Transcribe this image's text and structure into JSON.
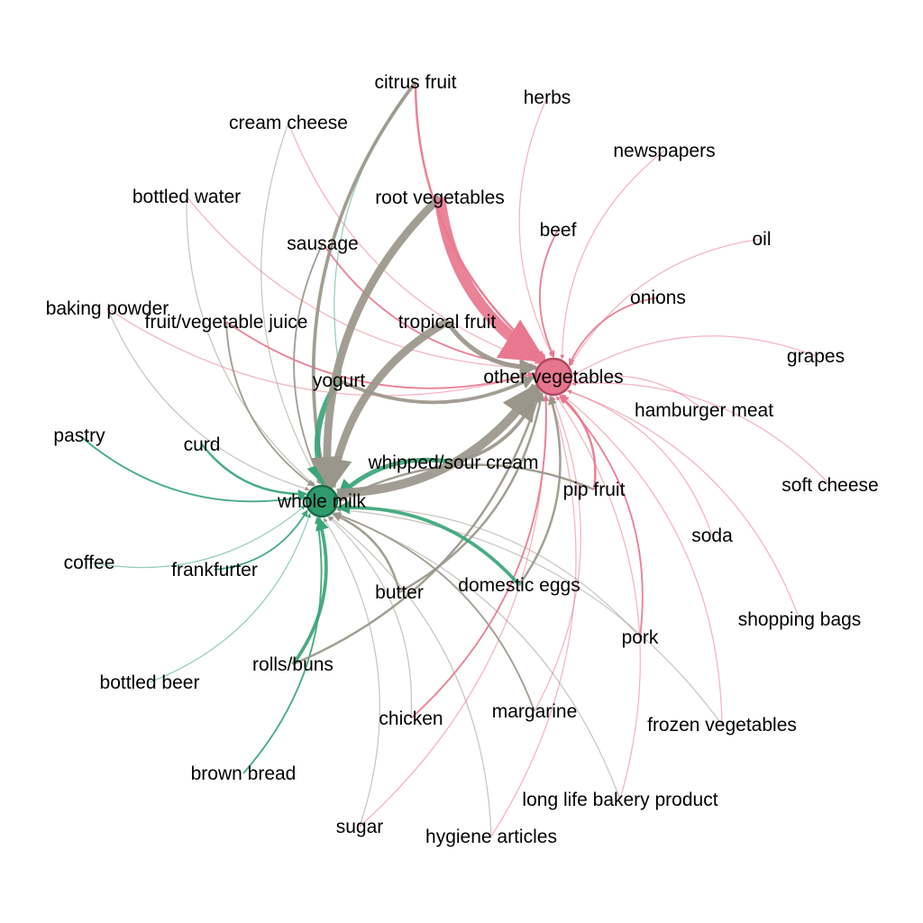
{
  "colors": {
    "whole_milk": "#3aa57a",
    "other_vegetables": "#e8778f",
    "shared": "#9a968a",
    "hub_milk_fill": "#2f9a6c",
    "hub_milk_stroke": "#1d6b49",
    "hub_veg_fill": "#e4778e",
    "hub_veg_stroke": "#b4485f",
    "background": "#ffffff"
  },
  "hubs": [
    {
      "id": "whole_milk",
      "label": "whole milk"
    },
    {
      "id": "other_vegetables",
      "label": "other vegetables"
    }
  ],
  "nodes": [
    {
      "id": "citrus_fruit",
      "label": "citrus fruit"
    },
    {
      "id": "herbs",
      "label": "herbs"
    },
    {
      "id": "cream_cheese",
      "label": "cream cheese"
    },
    {
      "id": "newspapers",
      "label": "newspapers"
    },
    {
      "id": "bottled_water",
      "label": "bottled water"
    },
    {
      "id": "root_vegetables",
      "label": "root vegetables"
    },
    {
      "id": "beef",
      "label": "beef"
    },
    {
      "id": "oil",
      "label": "oil"
    },
    {
      "id": "sausage",
      "label": "sausage"
    },
    {
      "id": "onions",
      "label": "onions"
    },
    {
      "id": "baking_powder",
      "label": "baking powder"
    },
    {
      "id": "fruit_vegetable_juice",
      "label": "fruit/vegetable juice"
    },
    {
      "id": "tropical_fruit",
      "label": "tropical fruit"
    },
    {
      "id": "grapes",
      "label": "grapes"
    },
    {
      "id": "yogurt",
      "label": "yogurt"
    },
    {
      "id": "hamburger_meat",
      "label": "hamburger meat"
    },
    {
      "id": "pastry",
      "label": "pastry"
    },
    {
      "id": "curd",
      "label": "curd"
    },
    {
      "id": "whipped_sour_cream",
      "label": "whipped/sour cream"
    },
    {
      "id": "soft_cheese",
      "label": "soft cheese"
    },
    {
      "id": "pip_fruit",
      "label": "pip fruit"
    },
    {
      "id": "soda",
      "label": "soda"
    },
    {
      "id": "coffee",
      "label": "coffee"
    },
    {
      "id": "frankfurter",
      "label": "frankfurter"
    },
    {
      "id": "domestic_eggs",
      "label": "domestic eggs"
    },
    {
      "id": "butter",
      "label": "butter"
    },
    {
      "id": "shopping_bags",
      "label": "shopping bags"
    },
    {
      "id": "pork",
      "label": "pork"
    },
    {
      "id": "bottled_beer",
      "label": "bottled beer"
    },
    {
      "id": "rolls_buns",
      "label": "rolls/buns"
    },
    {
      "id": "margarine",
      "label": "margarine"
    },
    {
      "id": "chicken",
      "label": "chicken"
    },
    {
      "id": "frozen_vegetables",
      "label": "frozen vegetables"
    },
    {
      "id": "brown_bread",
      "label": "brown bread"
    },
    {
      "id": "long_life_bakery_product",
      "label": "long life bakery product"
    },
    {
      "id": "sugar",
      "label": "sugar"
    },
    {
      "id": "hygiene_articles",
      "label": "hygiene articles"
    }
  ],
  "edges": [
    {
      "from": "root_vegetables",
      "to": "other_vegetables",
      "weight": 10,
      "color": "other_vegetables"
    },
    {
      "from": "root_vegetables",
      "to": "whole_milk",
      "weight": 7,
      "color": "shared"
    },
    {
      "from": "tropical_fruit",
      "to": "whole_milk",
      "weight": 7,
      "color": "shared"
    },
    {
      "from": "yogurt",
      "to": "whole_milk",
      "weight": 5,
      "color": "whole_milk"
    },
    {
      "from": "whole_milk",
      "to": "other_vegetables",
      "weight": 8,
      "color": "shared"
    },
    {
      "from": "whipped_sour_cream",
      "to": "whole_milk",
      "weight": 4,
      "color": "whole_milk"
    },
    {
      "from": "whipped_sour_cream",
      "to": "other_vegetables",
      "weight": 3,
      "color": "shared"
    },
    {
      "from": "citrus_fruit",
      "to": "whole_milk",
      "weight": 3,
      "color": "shared"
    },
    {
      "from": "citrus_fruit",
      "to": "other_vegetables",
      "weight": 2,
      "color": "other_vegetables"
    },
    {
      "from": "tropical_fruit",
      "to": "other_vegetables",
      "weight": 4,
      "color": "shared"
    },
    {
      "from": "domestic_eggs",
      "to": "whole_milk",
      "weight": 3,
      "color": "whole_milk"
    },
    {
      "from": "domestic_eggs",
      "to": "other_vegetables",
      "weight": 2,
      "color": "shared"
    },
    {
      "from": "pip_fruit",
      "to": "whole_milk",
      "weight": 2,
      "color": "shared"
    },
    {
      "from": "pip_fruit",
      "to": "other_vegetables",
      "weight": 2,
      "color": "other_vegetables"
    },
    {
      "from": "butter",
      "to": "whole_milk",
      "weight": 2,
      "color": "shared"
    },
    {
      "from": "butter",
      "to": "other_vegetables",
      "weight": 2,
      "color": "shared"
    },
    {
      "from": "rolls_buns",
      "to": "whole_milk",
      "weight": 3,
      "color": "whole_milk"
    },
    {
      "from": "rolls_buns",
      "to": "other_vegetables",
      "weight": 2,
      "color": "shared"
    },
    {
      "from": "curd",
      "to": "whole_milk",
      "weight": 2,
      "color": "whole_milk"
    },
    {
      "from": "pastry",
      "to": "whole_milk",
      "weight": 1.5,
      "color": "whole_milk"
    },
    {
      "from": "coffee",
      "to": "whole_milk",
      "weight": 1,
      "color": "whole_milk"
    },
    {
      "from": "frankfurter",
      "to": "whole_milk",
      "weight": 1.5,
      "color": "whole_milk"
    },
    {
      "from": "bottled_beer",
      "to": "whole_milk",
      "weight": 1,
      "color": "whole_milk"
    },
    {
      "from": "brown_bread",
      "to": "whole_milk",
      "weight": 1.5,
      "color": "whole_milk"
    },
    {
      "from": "sugar",
      "to": "whole_milk",
      "weight": 1,
      "color": "shared"
    },
    {
      "from": "hygiene_articles",
      "to": "whole_milk",
      "weight": 1,
      "color": "shared"
    },
    {
      "from": "margarine",
      "to": "whole_milk",
      "weight": 1.5,
      "color": "shared"
    },
    {
      "from": "frozen_vegetables",
      "to": "whole_milk",
      "weight": 1,
      "color": "shared"
    },
    {
      "from": "pork",
      "to": "whole_milk",
      "weight": 1,
      "color": "shared"
    },
    {
      "from": "chicken",
      "to": "whole_milk",
      "weight": 1,
      "color": "shared"
    },
    {
      "from": "long_life_bakery_product",
      "to": "whole_milk",
      "weight": 1,
      "color": "shared"
    },
    {
      "from": "sausage",
      "to": "whole_milk",
      "weight": 1.5,
      "color": "shared"
    },
    {
      "from": "cream_cheese",
      "to": "whole_milk",
      "weight": 1,
      "color": "shared"
    },
    {
      "from": "bottled_water",
      "to": "whole_milk",
      "weight": 1,
      "color": "shared"
    },
    {
      "from": "fruit_vegetable_juice",
      "to": "whole_milk",
      "weight": 1.5,
      "color": "shared"
    },
    {
      "from": "baking_powder",
      "to": "whole_milk",
      "weight": 1,
      "color": "shared"
    },
    {
      "from": "herbs",
      "to": "other_vegetables",
      "weight": 1,
      "color": "other_vegetables"
    },
    {
      "from": "cream_cheese",
      "to": "other_vegetables",
      "weight": 1,
      "color": "other_vegetables"
    },
    {
      "from": "newspapers",
      "to": "other_vegetables",
      "weight": 1,
      "color": "other_vegetables"
    },
    {
      "from": "bottled_water",
      "to": "other_vegetables",
      "weight": 1,
      "color": "other_vegetables"
    },
    {
      "from": "beef",
      "to": "other_vegetables",
      "weight": 1.5,
      "color": "other_vegetables"
    },
    {
      "from": "oil",
      "to": "other_vegetables",
      "weight": 1,
      "color": "other_vegetables"
    },
    {
      "from": "sausage",
      "to": "other_vegetables",
      "weight": 1.5,
      "color": "other_vegetables"
    },
    {
      "from": "onions",
      "to": "other_vegetables",
      "weight": 1.5,
      "color": "other_vegetables"
    },
    {
      "from": "baking_powder",
      "to": "other_vegetables",
      "weight": 1,
      "color": "other_vegetables"
    },
    {
      "from": "fruit_vegetable_juice",
      "to": "other_vegetables",
      "weight": 1.5,
      "color": "other_vegetables"
    },
    {
      "from": "grapes",
      "to": "other_vegetables",
      "weight": 1,
      "color": "other_vegetables"
    },
    {
      "from": "hamburger_meat",
      "to": "other_vegetables",
      "weight": 1,
      "color": "other_vegetables"
    },
    {
      "from": "soft_cheese",
      "to": "other_vegetables",
      "weight": 1,
      "color": "other_vegetables"
    },
    {
      "from": "soda",
      "to": "other_vegetables",
      "weight": 1,
      "color": "other_vegetables"
    },
    {
      "from": "shopping_bags",
      "to": "other_vegetables",
      "weight": 1,
      "color": "other_vegetables"
    },
    {
      "from": "pork",
      "to": "other_vegetables",
      "weight": 1.5,
      "color": "other_vegetables"
    },
    {
      "from": "frozen_vegetables",
      "to": "other_vegetables",
      "weight": 1,
      "color": "other_vegetables"
    },
    {
      "from": "chicken",
      "to": "other_vegetables",
      "weight": 1.5,
      "color": "other_vegetables"
    },
    {
      "from": "long_life_bakery_product",
      "to": "other_vegetables",
      "weight": 1,
      "color": "other_vegetables"
    },
    {
      "from": "hygiene_articles",
      "to": "other_vegetables",
      "weight": 1,
      "color": "other_vegetables"
    },
    {
      "from": "sugar",
      "to": "other_vegetables",
      "weight": 1,
      "color": "other_vegetables"
    },
    {
      "from": "margarine",
      "to": "other_vegetables",
      "weight": 1,
      "color": "other_vegetables"
    },
    {
      "from": "yogurt",
      "to": "other_vegetables",
      "weight": 3,
      "color": "shared"
    },
    {
      "from": "citrus_fruit",
      "to": "yogurt",
      "weight": 1,
      "color": "whole_milk"
    }
  ]
}
